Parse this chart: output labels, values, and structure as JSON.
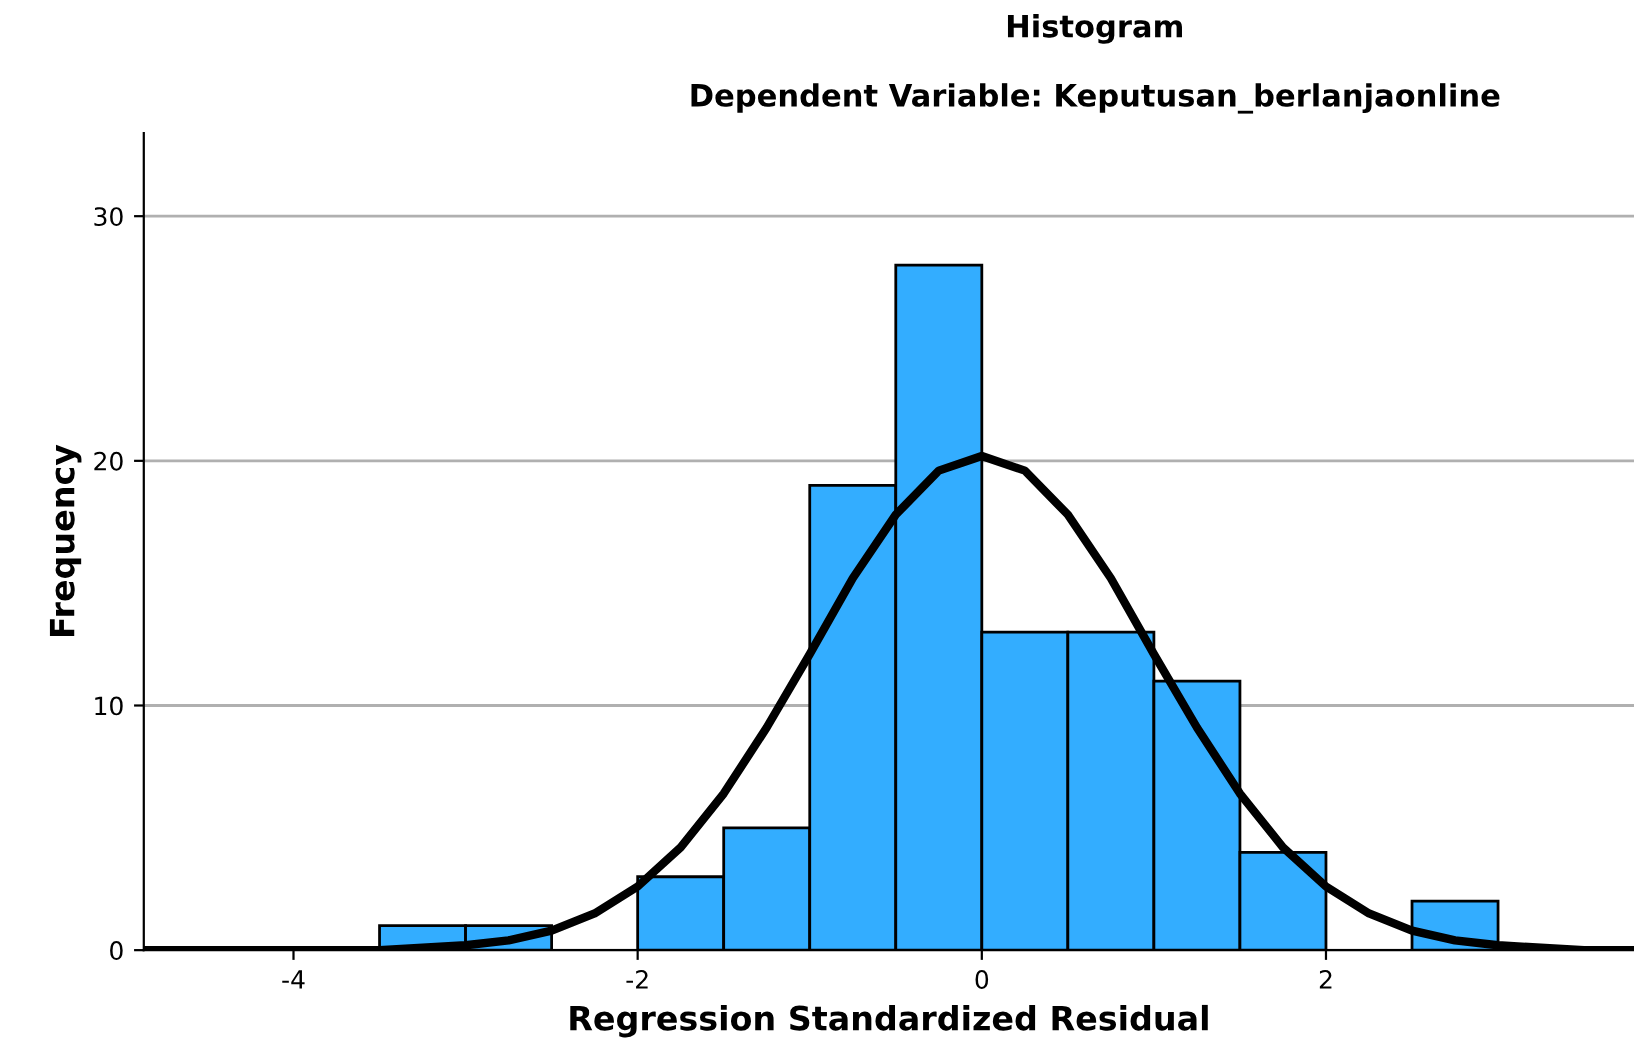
{
  "chart_data": {
    "type": "histogram",
    "title": "Histogram",
    "subtitle": "Dependent Variable: Keputusan_berlanjaonline",
    "xlabel": "Regression Standardized Residual",
    "ylabel": "Frequency",
    "bins": [
      -3.5,
      -3.0,
      -2.5,
      -2.0,
      -1.5,
      -1.0,
      -0.5,
      0.0,
      0.5,
      1.0,
      1.5,
      2.0,
      2.5,
      3.0
    ],
    "values": [
      1,
      1,
      0,
      3,
      5,
      19,
      28,
      13,
      13,
      11,
      4,
      0,
      2
    ],
    "color": "#33adff",
    "series": [
      {
        "type": "line",
        "color": "#000000",
        "x": [
          -4.87,
          -4.0,
          -3.5,
          -3.0,
          -2.75,
          -2.5,
          -2.25,
          -2.0,
          -1.75,
          -1.5,
          -1.25,
          -1.0,
          -0.75,
          -0.5,
          -0.25,
          0.0,
          0.25,
          0.5,
          0.75,
          1.0,
          1.25,
          1.5,
          1.75,
          2.0,
          2.25,
          2.5,
          2.75,
          3.0,
          3.5,
          3.79
        ],
        "values": [
          0.0,
          0.0,
          0.0,
          0.2,
          0.4,
          0.8,
          1.5,
          2.6,
          4.2,
          6.4,
          9.1,
          12.1,
          15.2,
          17.8,
          19.6,
          20.2,
          19.6,
          17.8,
          15.2,
          12.1,
          9.1,
          6.4,
          4.2,
          2.6,
          1.5,
          0.8,
          0.4,
          0.2,
          0.0,
          0.0
        ]
      }
    ],
    "xlim": [
      -4.87,
      3.79
    ],
    "ylim": [
      0,
      33.4
    ],
    "xticks": [
      -4,
      -2,
      0,
      2
    ],
    "yticks": [
      0,
      10,
      20,
      30
    ],
    "grid": "y"
  }
}
